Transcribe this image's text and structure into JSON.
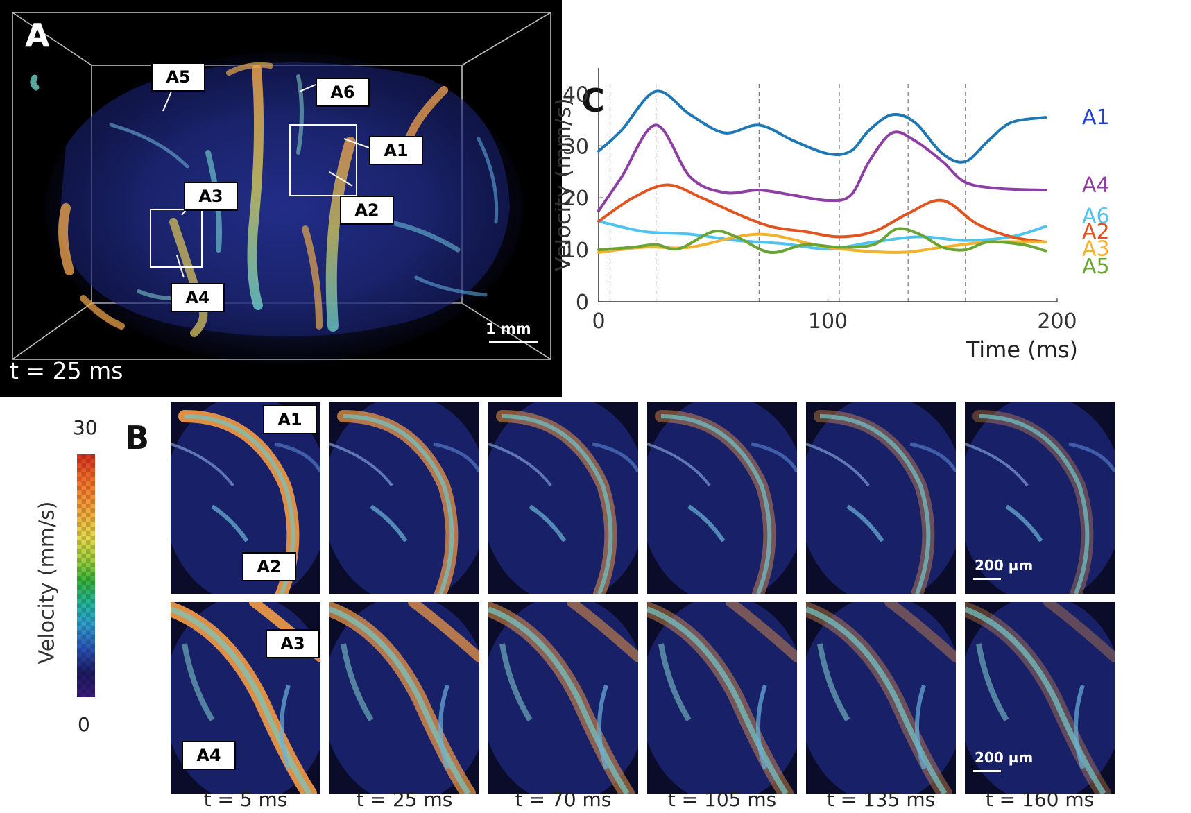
{
  "panel_a": {
    "letter": "A",
    "time_label": "t = 25 ms",
    "scale_label": "1 mm",
    "callouts": [
      "A5",
      "A6",
      "A1",
      "A2",
      "A3",
      "A4"
    ]
  },
  "panel_b": {
    "letter": "B",
    "time_labels": [
      "t = 5 ms",
      "t = 25 ms",
      "t = 70 ms",
      "t = 105 ms",
      "t = 135 ms",
      "t = 160 ms"
    ],
    "scale_label": "200 µm",
    "callouts": [
      "A1",
      "A2",
      "A3",
      "A4"
    ]
  },
  "colorbar": {
    "max_label": "30",
    "min_label": "0",
    "label": "Velocity (mm/s)",
    "range": [
      0,
      30
    ]
  },
  "panel_c": {
    "letter": "C"
  },
  "chart_data": {
    "type": "line",
    "xlabel": "Time (ms)",
    "ylabel": "Velocity (mm/s)",
    "xlim": [
      0,
      200
    ],
    "ylim": [
      0,
      45
    ],
    "xticks": [
      0,
      100,
      200
    ],
    "yticks": [
      0,
      10,
      20,
      30,
      40
    ],
    "vlines": [
      5,
      25,
      70,
      105,
      135,
      160
    ],
    "series": [
      {
        "name": "A1",
        "color": "#1f77b4",
        "label_color": "#1f3fcf",
        "x": [
          0,
          10,
          25,
          40,
          55,
          70,
          85,
          100,
          110,
          118,
          128,
          138,
          150,
          160,
          170,
          180,
          195
        ],
        "y": [
          29,
          33,
          40.5,
          36,
          32.5,
          34,
          31,
          28.5,
          29,
          33,
          36,
          34.5,
          28.5,
          27,
          31,
          34.5,
          35.5
        ]
      },
      {
        "name": "A4",
        "color": "#8e3fa3",
        "label_color": "#8e3fa3",
        "x": [
          0,
          10,
          25,
          40,
          55,
          70,
          85,
          100,
          110,
          118,
          128,
          138,
          150,
          160,
          175,
          195
        ],
        "y": [
          17.5,
          24,
          34,
          24,
          21,
          21.5,
          20.5,
          19.5,
          20.5,
          27,
          32.5,
          31,
          27,
          23,
          21.8,
          21.5
        ]
      },
      {
        "name": "A6",
        "color": "#4ec3f0",
        "label_color": "#4ec3f0",
        "x": [
          0,
          20,
          40,
          60,
          80,
          100,
          120,
          140,
          160,
          180,
          195
        ],
        "y": [
          15.5,
          13.5,
          13,
          11.8,
          11.2,
          10.2,
          11.5,
          12.5,
          11.8,
          12.5,
          14.5
        ]
      },
      {
        "name": "A2",
        "color": "#e2541f",
        "label_color": "#e2541f",
        "x": [
          0,
          15,
          30,
          45,
          60,
          75,
          90,
          105,
          120,
          135,
          150,
          165,
          180,
          195
        ],
        "y": [
          15.5,
          20,
          22.5,
          20,
          17,
          14.5,
          13.5,
          12.5,
          13.5,
          17,
          19.5,
          15,
          12.5,
          11.5
        ]
      },
      {
        "name": "A3",
        "color": "#f2b22e",
        "label_color": "#f2b22e",
        "x": [
          0,
          20,
          40,
          70,
          100,
          130,
          150,
          170,
          195
        ],
        "y": [
          9.5,
          10.5,
          10.5,
          13,
          10.5,
          9.5,
          10.5,
          11.5,
          11.5
        ]
      },
      {
        "name": "A5",
        "color": "#6aa434",
        "label_color": "#6aa434",
        "x": [
          0,
          15,
          25,
          35,
          50,
          60,
          75,
          90,
          105,
          120,
          130,
          140,
          150,
          160,
          170,
          185,
          195
        ],
        "y": [
          10,
          10.5,
          11,
          10.2,
          13.5,
          12.5,
          9.5,
          11,
          10.5,
          11,
          14,
          13,
          10.5,
          10,
          11.5,
          11,
          9.8
        ]
      }
    ]
  }
}
